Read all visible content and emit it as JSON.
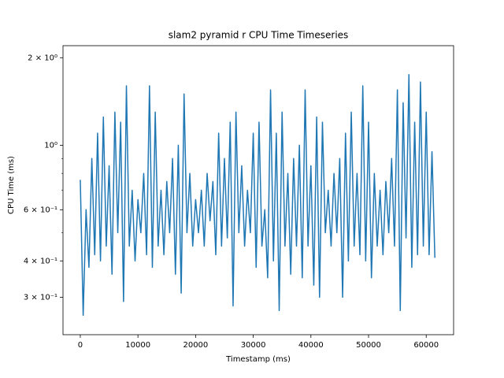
{
  "chart_data": {
    "type": "line",
    "title": "slam2 pyramid r CPU Time Timeseries",
    "xlabel": "Timestamp (ms)",
    "ylabel": "CPU Time (ms)",
    "color": "#1f77b4",
    "ylog": true,
    "x": [
      0,
      500,
      1000,
      1500,
      2000,
      2500,
      3000,
      3500,
      4000,
      4500,
      5000,
      5500,
      6000,
      6500,
      7000,
      7500,
      8000,
      8500,
      9000,
      9500,
      10000,
      10500,
      11000,
      11500,
      12000,
      12500,
      13000,
      13500,
      14000,
      14500,
      15000,
      15500,
      16000,
      16500,
      17000,
      17500,
      18000,
      18500,
      19000,
      19500,
      20000,
      20500,
      21000,
      21500,
      22000,
      22500,
      23000,
      23500,
      24000,
      24500,
      25000,
      25500,
      26000,
      26500,
      27000,
      27500,
      28000,
      28500,
      29000,
      29500,
      30000,
      30500,
      31000,
      31500,
      32000,
      32500,
      33000,
      33500,
      34000,
      34500,
      35000,
      35500,
      36000,
      36500,
      37000,
      37500,
      38000,
      38500,
      39000,
      39500,
      40000,
      40500,
      41000,
      41500,
      42000,
      42500,
      43000,
      43500,
      44000,
      44500,
      45000,
      45500,
      46000,
      46500,
      47000,
      47500,
      48000,
      48500,
      49000,
      49500,
      50000,
      50500,
      51000,
      51500,
      52000,
      52500,
      53000,
      53500,
      54000,
      54500,
      55000,
      55500,
      56000,
      56500,
      57000,
      57500,
      58000,
      58500,
      59000,
      59500,
      60000,
      60500,
      61000,
      61500
    ],
    "values": [
      0.76,
      0.26,
      0.6,
      0.38,
      0.9,
      0.42,
      1.1,
      0.4,
      1.25,
      0.45,
      0.85,
      0.36,
      1.3,
      0.5,
      1.2,
      0.29,
      1.6,
      0.45,
      0.7,
      0.4,
      0.65,
      0.5,
      0.8,
      0.42,
      1.6,
      0.38,
      1.3,
      0.45,
      0.7,
      0.42,
      0.75,
      0.5,
      0.9,
      0.36,
      1.0,
      0.31,
      1.5,
      0.5,
      0.8,
      0.45,
      0.65,
      0.5,
      0.7,
      0.45,
      0.8,
      0.55,
      0.75,
      0.42,
      1.1,
      0.45,
      0.9,
      0.48,
      1.2,
      0.28,
      1.3,
      0.5,
      0.85,
      0.45,
      0.7,
      0.5,
      1.1,
      0.38,
      1.2,
      0.45,
      0.6,
      0.35,
      1.55,
      0.4,
      1.1,
      0.27,
      1.3,
      0.45,
      0.8,
      0.36,
      0.9,
      0.45,
      1.0,
      0.35,
      1.55,
      0.45,
      0.85,
      0.33,
      1.25,
      0.3,
      1.2,
      0.5,
      0.7,
      0.45,
      0.8,
      0.5,
      0.9,
      0.3,
      1.1,
      0.4,
      1.3,
      0.45,
      0.8,
      0.42,
      1.6,
      0.4,
      1.2,
      0.35,
      0.8,
      0.45,
      0.7,
      0.42,
      0.75,
      0.5,
      0.9,
      0.45,
      1.55,
      0.27,
      1.4,
      0.48,
      1.75,
      0.38,
      1.2,
      0.42,
      1.65,
      0.45,
      1.3,
      0.42,
      0.95,
      0.41
    ],
    "xlim": [
      -3000,
      64750
    ],
    "ylim": [
      0.223,
      2.2
    ],
    "xticks": [
      0,
      10000,
      20000,
      30000,
      40000,
      50000,
      60000
    ],
    "yticks": [
      {
        "value": 0.3,
        "label": "3 × 10⁻¹"
      },
      {
        "value": 0.4,
        "label": "4 × 10⁻¹"
      },
      {
        "value": 0.6,
        "label": "6 × 10⁻¹"
      },
      {
        "value": 1,
        "label": "10⁰"
      },
      {
        "value": 2,
        "label": "2 × 10⁰"
      }
    ],
    "yminorticks": [
      0.5,
      0.7,
      0.8,
      0.9
    ]
  }
}
